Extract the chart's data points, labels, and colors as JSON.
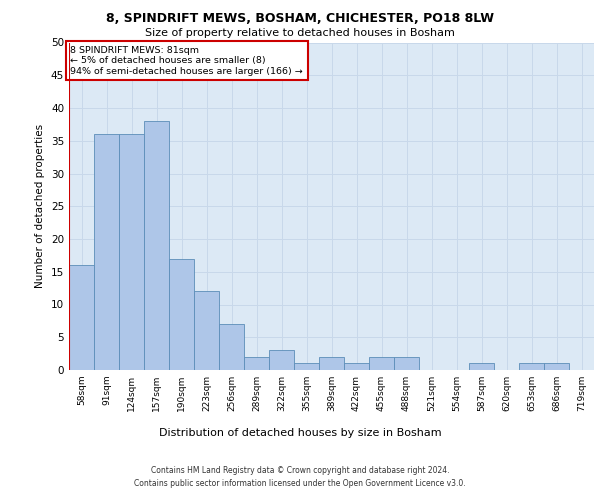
{
  "title_line1": "8, SPINDRIFT MEWS, BOSHAM, CHICHESTER, PO18 8LW",
  "title_line2": "Size of property relative to detached houses in Bosham",
  "xlabel": "Distribution of detached houses by size in Bosham",
  "ylabel": "Number of detached properties",
  "categories": [
    "58sqm",
    "91sqm",
    "124sqm",
    "157sqm",
    "190sqm",
    "223sqm",
    "256sqm",
    "289sqm",
    "322sqm",
    "355sqm",
    "389sqm",
    "422sqm",
    "455sqm",
    "488sqm",
    "521sqm",
    "554sqm",
    "587sqm",
    "620sqm",
    "653sqm",
    "686sqm",
    "719sqm"
  ],
  "values": [
    16,
    36,
    36,
    38,
    17,
    12,
    7,
    2,
    3,
    1,
    2,
    1,
    2,
    2,
    0,
    0,
    1,
    0,
    1,
    1,
    0
  ],
  "bar_color": "#aec6e8",
  "bar_edge_color": "#5b8db8",
  "ylim": [
    0,
    50
  ],
  "yticks": [
    0,
    5,
    10,
    15,
    20,
    25,
    30,
    35,
    40,
    45,
    50
  ],
  "property_name": "8 SPINDRIFT MEWS: 81sqm",
  "annotation_line1": "← 5% of detached houses are smaller (8)",
  "annotation_line2": "94% of semi-detached houses are larger (166) →",
  "annotation_box_color": "#ffffff",
  "annotation_box_edge": "#cc0000",
  "vline_color": "#cc0000",
  "grid_color": "#c8d8ea",
  "plot_bg_color": "#dce9f5",
  "footer_line1": "Contains HM Land Registry data © Crown copyright and database right 2024.",
  "footer_line2": "Contains public sector information licensed under the Open Government Licence v3.0."
}
